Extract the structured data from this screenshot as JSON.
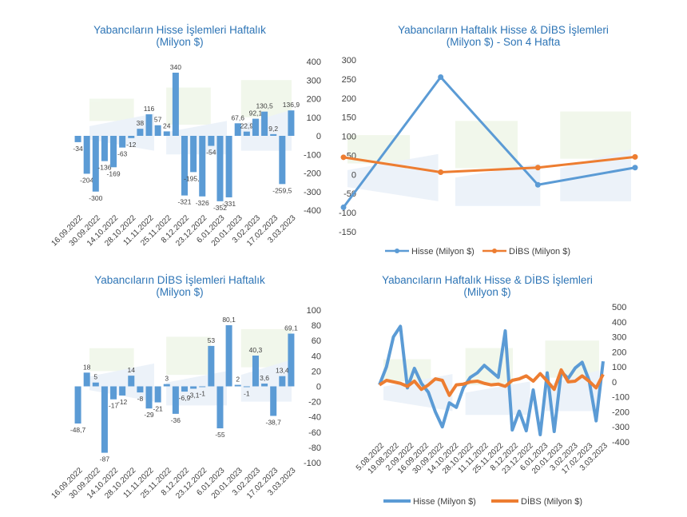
{
  "charts": [
    {
      "id": "hisse-weekly",
      "title_line1": "Yabancıların Hisse İşlemleri Haftalık",
      "title_line2": "(Milyon $)",
      "chart_data": {
        "type": "bar",
        "title": "Yabancıların Hisse İşlemleri Haftalık (Milyon $)",
        "y_axis": "right",
        "ylim": [
          -400,
          400
        ],
        "yticks": [
          400,
          300,
          200,
          100,
          0,
          -100,
          -200,
          -300,
          -400
        ],
        "xtick_labels": [
          "16.09.2022",
          "30.09.2022",
          "14.10.2022",
          "28.10.2022",
          "11.11.2022",
          "25.11.2022",
          "8.12.2022",
          "23.12.2022",
          "6.01.2023",
          "20.01.2023",
          "3.02.2023",
          "17.02.2023",
          "3.03.2023"
        ],
        "bar_color": "#5b9bd5",
        "values": [
          -34,
          -204,
          -300,
          -136,
          -169,
          -63,
          -12,
          38,
          116,
          57,
          24,
          340,
          -321,
          -195.1,
          -326,
          -54,
          -352,
          -331,
          67.6,
          22.9,
          92.1,
          130.5,
          9.2,
          -259.5,
          136.9
        ],
        "labels": [
          "-34",
          "-204",
          "-300",
          "-136",
          "-169",
          "-63",
          "-12",
          "38",
          "116",
          "57",
          "24",
          "340",
          "-321",
          "-195,1",
          "-326",
          "-54",
          "-352",
          "-331",
          "67,6",
          "22,9",
          "92,1",
          "130,5",
          "9,2",
          "-259,5",
          "136,9"
        ]
      }
    },
    {
      "id": "last4",
      "title_line1": "Yabancıların  Haftalık Hisse & DİBS İşlemleri",
      "title_line2": "(Milyon $) - Son 4 Hafta",
      "chart_data": {
        "type": "line",
        "title": "Yabancıların Haftalık Hisse & DİBS İşlemleri (Milyon $) - Son 4 Hafta",
        "y_axis": "left",
        "ylim": [
          -150,
          300
        ],
        "yticks": [
          300,
          250,
          200,
          150,
          100,
          50,
          0,
          -50,
          -100,
          -150
        ],
        "x_points": 4,
        "legend_position": "bottom",
        "series": [
          {
            "name": "Hisse (Milyon $)",
            "color": "#5b9bd5",
            "values": [
              -86,
              255,
              -27,
              18
            ]
          },
          {
            "name": "DİBS (Milyon $)",
            "color": "#ed7d31",
            "values": [
              45,
              6,
              18,
              46
            ]
          }
        ]
      }
    },
    {
      "id": "dibs-weekly",
      "title_line1": "Yabancıların  DİBS İşlemleri Haftalık",
      "title_line2": "(Milyon $)",
      "chart_data": {
        "type": "bar",
        "title": "Yabancıların DİBS İşlemleri Haftalık (Milyon $)",
        "y_axis": "right",
        "ylim": [
          -100,
          100
        ],
        "yticks": [
          100,
          80,
          60,
          40,
          20,
          0,
          -20,
          -40,
          -60,
          -80,
          -100
        ],
        "xtick_labels": [
          "16.09.2022",
          "30.09.2022",
          "14.10.2022",
          "28.10.2022",
          "11.11.2022",
          "25.11.2022",
          "8.12.2022",
          "23.12.2022",
          "6.01.2023",
          "20.01.2023",
          "3.02.2023",
          "17.02.2023",
          "3.03.2023"
        ],
        "bar_color": "#5b9bd5",
        "values": [
          -48.7,
          18,
          5,
          -87,
          -17,
          -12,
          14,
          -8,
          -29,
          -21,
          3,
          -36,
          -6.9,
          -3.1,
          -1,
          53,
          -55,
          80.1,
          2,
          -1,
          40.3,
          3.6,
          -38.7,
          13.4,
          69.1
        ],
        "labels": [
          "-48,7",
          "18",
          "5",
          "-87",
          "-17",
          "-12",
          "14",
          "-8",
          "-29",
          "-21",
          "3",
          "-36",
          "-6,9",
          "-3,1",
          "-1",
          "53",
          "-55",
          "80,1",
          "2",
          "-1",
          "40,3",
          "3,6",
          "-38,7",
          "13,4",
          "69,1"
        ]
      }
    },
    {
      "id": "long-run",
      "title_line1": "Yabancıların Haftalık Hisse & DİBS İşlemleri",
      "title_line2": "(Milyon $)",
      "chart_data": {
        "type": "line",
        "title": "Yabancıların Haftalık Hisse & DİBS İşlemleri (Milyon $)",
        "y_axis": "right",
        "ylim": [
          -400,
          500
        ],
        "yticks": [
          500,
          400,
          300,
          200,
          100,
          0,
          -100,
          -200,
          -300,
          -400
        ],
        "xtick_labels": [
          "5.08.2022",
          "19.08.2022",
          "2.09.2022",
          "16.09.2022",
          "30.09.2022",
          "14.10.2022",
          "28.10.2022",
          "11.11.2022",
          "25.11.2022",
          "8.12.2022",
          "23.12.2022",
          "6.01.2023",
          "20.01.2023",
          "3.02.2023",
          "17.02.2023",
          "3.03.2023"
        ],
        "legend_position": "bottom",
        "series": [
          {
            "name": "Hisse (Milyon $)",
            "color": "#5b9bd5",
            "values": [
              -20,
              100,
              300,
              370,
              -40,
              90,
              -10,
              -70,
              -200,
              -300,
              -140,
              -170,
              -40,
              30,
              60,
              110,
              70,
              30,
              340,
              -321,
              -195,
              -326,
              -54,
              -352,
              60,
              -331,
              67.6,
              22.9,
              92.1,
              130.5,
              9.2,
              -259.5,
              136.9
            ]
          },
          {
            "name": "DİBS (Milyon $)",
            "color": "#ed7d31",
            "values": [
              -20,
              10,
              0,
              -10,
              -30,
              5,
              -50,
              -20,
              20,
              10,
              -90,
              -20,
              -15,
              0,
              5,
              -10,
              -20,
              -15,
              -30,
              10,
              20,
              40,
              5,
              55,
              5,
              -50,
              80,
              0,
              5,
              40,
              4,
              -40,
              50
            ]
          }
        ]
      }
    }
  ]
}
